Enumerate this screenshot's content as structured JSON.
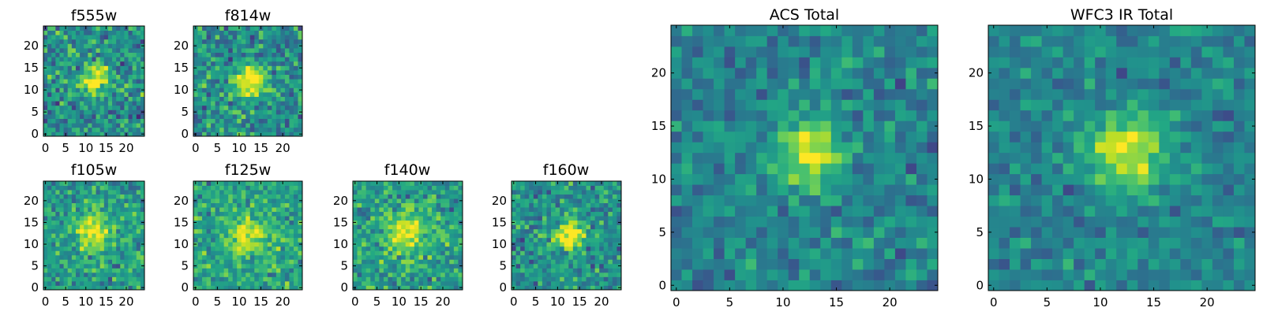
{
  "chart_data": [
    {
      "type": "heatmap",
      "title": "f555w",
      "grid_size": 25,
      "x_ticks": [
        "0",
        "5",
        "10",
        "15",
        "20"
      ],
      "y_ticks": [
        "0",
        "5",
        "10",
        "15",
        "20"
      ],
      "xlim": [
        -0.5,
        24.5
      ],
      "ylim": [
        -0.5,
        24.5
      ],
      "colormap": "viridis",
      "source_center": [
        12,
        12
      ],
      "source_width": 2.3,
      "source_amp": 0.6,
      "base_level": 0.5,
      "noise": 0.2,
      "seed": 11
    },
    {
      "type": "heatmap",
      "title": "f814w",
      "grid_size": 25,
      "x_ticks": [
        "0",
        "5",
        "10",
        "15",
        "20"
      ],
      "y_ticks": [
        "0",
        "5",
        "10",
        "15",
        "20"
      ],
      "xlim": [
        -0.5,
        24.5
      ],
      "ylim": [
        -0.5,
        24.5
      ],
      "colormap": "viridis",
      "source_center": [
        12.5,
        12
      ],
      "source_width": 2.5,
      "source_amp": 0.6,
      "base_level": 0.5,
      "noise": 0.2,
      "seed": 23
    },
    {
      "type": "heatmap",
      "title": "f105w",
      "grid_size": 25,
      "x_ticks": [
        "0",
        "5",
        "10",
        "15",
        "20"
      ],
      "y_ticks": [
        "0",
        "5",
        "10",
        "15",
        "20"
      ],
      "xlim": [
        -0.5,
        24.5
      ],
      "ylim": [
        -0.5,
        24.5
      ],
      "colormap": "viridis",
      "source_center": [
        12,
        13
      ],
      "source_width": 3.0,
      "source_amp": 0.45,
      "base_level": 0.55,
      "noise": 0.17,
      "seed": 37
    },
    {
      "type": "heatmap",
      "title": "f125w",
      "grid_size": 25,
      "x_ticks": [
        "0",
        "5",
        "10",
        "15",
        "20"
      ],
      "y_ticks": [
        "0",
        "5",
        "10",
        "15",
        "20"
      ],
      "xlim": [
        -0.5,
        24.5
      ],
      "ylim": [
        -0.5,
        24.5
      ],
      "colormap": "viridis",
      "source_center": [
        12,
        12
      ],
      "source_width": 3.0,
      "source_amp": 0.4,
      "base_level": 0.58,
      "noise": 0.17,
      "seed": 41
    },
    {
      "type": "heatmap",
      "title": "f140w",
      "grid_size": 25,
      "x_ticks": [
        "0",
        "5",
        "10",
        "15",
        "20"
      ],
      "y_ticks": [
        "0",
        "5",
        "10",
        "15",
        "20"
      ],
      "xlim": [
        -0.5,
        24.5
      ],
      "ylim": [
        -0.5,
        24.5
      ],
      "colormap": "viridis",
      "source_center": [
        11.5,
        12.5
      ],
      "source_width": 3.3,
      "source_amp": 0.4,
      "base_level": 0.56,
      "noise": 0.17,
      "seed": 53
    },
    {
      "type": "heatmap",
      "title": "f160w",
      "grid_size": 25,
      "x_ticks": [
        "0",
        "5",
        "10",
        "15",
        "20"
      ],
      "y_ticks": [
        "0",
        "5",
        "10",
        "15",
        "20"
      ],
      "xlim": [
        -0.5,
        24.5
      ],
      "ylim": [
        -0.5,
        24.5
      ],
      "colormap": "viridis",
      "source_center": [
        12.5,
        12
      ],
      "source_width": 2.5,
      "source_amp": 0.55,
      "base_level": 0.5,
      "noise": 0.18,
      "seed": 67
    },
    {
      "type": "heatmap",
      "title": "ACS Total",
      "grid_size": 25,
      "x_ticks": [
        "0",
        "5",
        "10",
        "15",
        "20"
      ],
      "y_ticks": [
        "0",
        "5",
        "10",
        "15",
        "20"
      ],
      "xlim": [
        -0.5,
        24.5
      ],
      "ylim": [
        -0.5,
        24.5
      ],
      "colormap": "viridis",
      "source_center": [
        12.5,
        12.5
      ],
      "source_width": 2.2,
      "source_amp": 0.5,
      "base_level": 0.45,
      "noise": 0.14,
      "seed": 79
    },
    {
      "type": "heatmap",
      "title": "WFC3 IR Total",
      "grid_size": 25,
      "x_ticks": [
        "0",
        "5",
        "10",
        "15",
        "20"
      ],
      "y_ticks": [
        "0",
        "5",
        "10",
        "15",
        "20"
      ],
      "xlim": [
        -0.5,
        24.5
      ],
      "ylim": [
        -0.5,
        24.5
      ],
      "colormap": "viridis",
      "source_center": [
        12.5,
        12.5
      ],
      "source_width": 2.5,
      "source_amp": 0.52,
      "base_level": 0.45,
      "noise": 0.12,
      "seed": 97
    }
  ]
}
